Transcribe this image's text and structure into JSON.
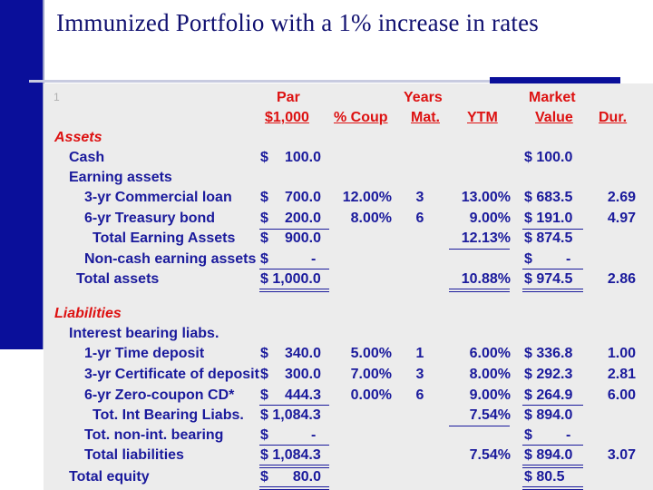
{
  "title": "Immunized Portfolio with a 1% increase in rates",
  "marker": "1",
  "header": {
    "par_line1": "Par",
    "par_line2": "$1,000",
    "coup": "% Coup",
    "years_line1": "Years",
    "years_line2": "Mat.",
    "ytm": "YTM",
    "mv_line1": "Market",
    "mv_line2": "Value",
    "dur": "Dur."
  },
  "assets_heading": "Assets",
  "cash": {
    "label": "Cash",
    "dollar": "$",
    "par": "100.0",
    "mv": "$ 100.0"
  },
  "earning_label": "Earning assets",
  "loan": {
    "label": "3-yr Commercial loan",
    "dollar": "$",
    "par": "700.0",
    "coup": "12.00%",
    "mat": "3",
    "ytm": "13.00%",
    "mv": "$ 683.5",
    "dur": "2.69"
  },
  "tbond": {
    "label": "6-yr Treasury bond",
    "dollar": "$",
    "par": "200.0",
    "coup": "8.00%",
    "mat": "6",
    "ytm": "9.00%",
    "mv": "$ 191.0",
    "dur": "4.97"
  },
  "tea": {
    "label": "Total Earning Assets",
    "dollar": "$",
    "par": "900.0",
    "ytm": "12.13%",
    "mv": "$ 874.5"
  },
  "nonearn": {
    "label": "Non-cash earning assets",
    "dollar": "$",
    "par": "-",
    "mv": "$",
    "mvdash": "-"
  },
  "total_assets": {
    "label": "Total assets",
    "par": "$ 1,000.0",
    "ytm": "10.88%",
    "mv": "$ 974.5",
    "dur": "2.86"
  },
  "liab_heading": "Liabilities",
  "ibl_label": "Interest bearing liabs.",
  "td": {
    "label": "1-yr Time deposit",
    "dollar": "$",
    "par": "340.0",
    "coup": "5.00%",
    "mat": "1",
    "ytm": "6.00%",
    "mv": "$ 336.8",
    "dur": "1.00"
  },
  "cd": {
    "label": "3-yr Certificate of deposit",
    "dollar": "$",
    "par": "300.0",
    "coup": "7.00%",
    "mat": "3",
    "ytm": "8.00%",
    "mv": "$ 292.3",
    "dur": "2.81"
  },
  "zcd": {
    "label": "6-yr Zero-coupon CD*",
    "dollar": "$",
    "par": "444.3",
    "coup": "0.00%",
    "mat": "6",
    "ytm": "9.00%",
    "mv": "$ 264.9",
    "dur": "6.00"
  },
  "tibl": {
    "label": "Tot. Int Bearing Liabs.",
    "par": "$ 1,084.3",
    "ytm": "7.54%",
    "mv": "$ 894.0"
  },
  "tnib": {
    "label": "Tot. non-int. bearing",
    "dollar": "$",
    "par": "-",
    "mv": "$",
    "mvdash": "-"
  },
  "total_liab": {
    "label": "Total liabilities",
    "par": "$ 1,084.3",
    "ytm": "7.54%",
    "mv": "$ 894.0",
    "dur": "3.07"
  },
  "equity": {
    "label": "Total equity",
    "dollar": "$",
    "par": "80.0",
    "mv": "$ 80.5"
  }
}
